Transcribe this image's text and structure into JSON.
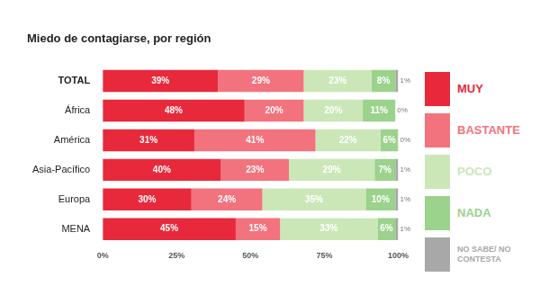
{
  "chart_data": {
    "type": "bar",
    "title": "Miedo de contagiarse, por región",
    "orientation": "horizontal",
    "stacked": true,
    "data_labels": true,
    "legend": "right",
    "grid": false,
    "categories": [
      "TOTAL",
      "África",
      "América",
      "Asia-Pacífico",
      "Europa",
      "MENA"
    ],
    "series": [
      {
        "name": "MUY",
        "color": "#e8293b",
        "values": [
          39,
          48,
          31,
          40,
          30,
          45
        ],
        "value_labels": [
          "39%",
          "48%",
          "31%",
          "40%",
          "30%",
          "45%"
        ]
      },
      {
        "name": "BASTANTE",
        "color": "#f2737e",
        "values": [
          29,
          20,
          41,
          23,
          24,
          15
        ],
        "value_labels": [
          "29%",
          "20%",
          "41%",
          "23%",
          "24%",
          "15%"
        ]
      },
      {
        "name": "POCO",
        "color": "#cbe7b8",
        "values": [
          23,
          20,
          22,
          29,
          35,
          33
        ],
        "value_labels": [
          "23%",
          "20%",
          "22%",
          "29%",
          "35%",
          "33%"
        ]
      },
      {
        "name": "NADA",
        "color": "#9bd28c",
        "values": [
          8,
          11,
          6,
          7,
          10,
          6
        ],
        "value_labels": [
          "8%",
          "11%",
          "6%",
          "7%",
          "10%",
          "6%"
        ]
      },
      {
        "name": "NO SABE/ NO CONTESTA",
        "color": "#a8a8a8",
        "values": [
          1,
          0,
          0,
          1,
          1,
          1
        ],
        "value_labels": [
          "1%",
          "0%",
          "0%",
          "1%",
          "1%",
          "1%"
        ]
      }
    ],
    "xlim": [
      0,
      100
    ],
    "xticks": [
      {
        "value": 0,
        "label": "0%"
      },
      {
        "value": 25,
        "label": "25%"
      },
      {
        "value": 50,
        "label": "50%"
      },
      {
        "value": 75,
        "label": "75%"
      },
      {
        "value": 100,
        "label": "100%"
      }
    ]
  }
}
